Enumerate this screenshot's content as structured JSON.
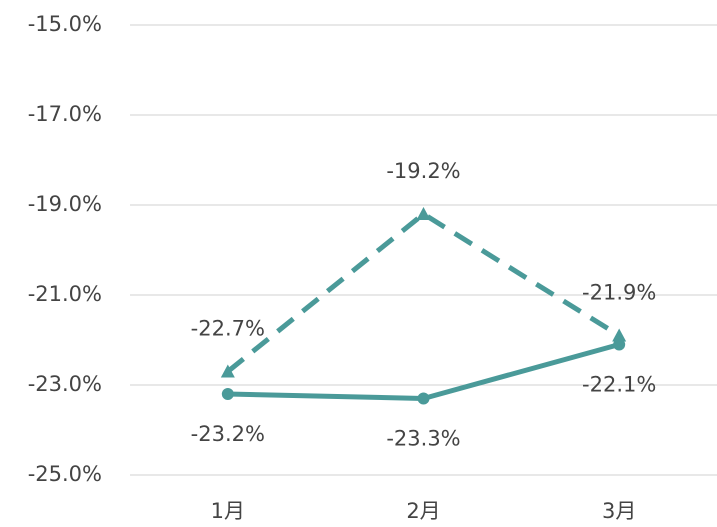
{
  "chart_data": {
    "type": "line",
    "categories": [
      "1月",
      "2月",
      "3月"
    ],
    "series": [
      {
        "color": "#4a9a99",
        "dashed": true,
        "marker": "triangle",
        "values": [
          -22.7,
          -19.2,
          -21.9
        ],
        "value_labels": [
          "-22.7%",
          "-19.2%",
          "-21.9%"
        ],
        "label_position": "above"
      },
      {
        "color": "#4a9a99",
        "dashed": false,
        "marker": "circle",
        "values": [
          -23.2,
          -23.3,
          -22.1
        ],
        "value_labels": [
          "-23.2%",
          "-23.3%",
          "-22.1%"
        ],
        "label_position": "below"
      }
    ],
    "ylim": [
      -25,
      -15
    ],
    "yticks": [
      {
        "value": -25,
        "label": "-25.0%"
      },
      {
        "value": -23,
        "label": "-23.0%"
      },
      {
        "value": -21,
        "label": "-21.0%"
      },
      {
        "value": -19,
        "label": "-19.0%"
      },
      {
        "value": -17,
        "label": "-17.0%"
      },
      {
        "value": -15,
        "label": "-15.0%"
      }
    ],
    "grid": true
  }
}
